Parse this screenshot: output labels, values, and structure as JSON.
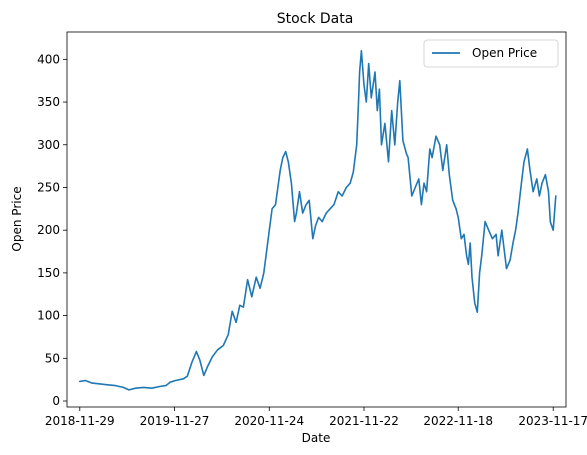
{
  "chart_data": {
    "type": "line",
    "title": "Stock Data",
    "xlabel": "Date",
    "ylabel": "Open Price",
    "legend_position": "top-right",
    "grid": false,
    "color": "#1f77b4",
    "ylim": [
      -7,
      432
    ],
    "xlim": [
      "2018-10-11",
      "2024-01-05"
    ],
    "x_ticks": [
      "2018-11-29",
      "2019-11-27",
      "2020-11-24",
      "2021-11-22",
      "2022-11-18",
      "2023-11-17"
    ],
    "y_ticks": [
      0,
      50,
      100,
      150,
      200,
      250,
      300,
      350,
      400
    ],
    "series": [
      {
        "name": "Open Price",
        "x": [
          "2018-11-29",
          "2018-12-20",
          "2019-01-15",
          "2019-02-15",
          "2019-03-15",
          "2019-04-15",
          "2019-05-15",
          "2019-06-05",
          "2019-07-01",
          "2019-08-01",
          "2019-09-01",
          "2019-10-01",
          "2019-10-25",
          "2019-11-10",
          "2019-12-01",
          "2019-12-31",
          "2020-01-15",
          "2020-02-01",
          "2020-02-19",
          "2020-03-03",
          "2020-03-18",
          "2020-04-01",
          "2020-04-20",
          "2020-05-10",
          "2020-06-01",
          "2020-06-20",
          "2020-07-05",
          "2020-07-20",
          "2020-08-03",
          "2020-08-17",
          "2020-09-02",
          "2020-09-18",
          "2020-10-05",
          "2020-10-20",
          "2020-11-03",
          "2020-11-24",
          "2020-12-05",
          "2020-12-18",
          "2021-01-05",
          "2021-01-15",
          "2021-01-26",
          "2021-02-05",
          "2021-02-17",
          "2021-03-01",
          "2021-03-08",
          "2021-03-20",
          "2021-04-01",
          "2021-04-14",
          "2021-04-26",
          "2021-05-10",
          "2021-05-20",
          "2021-06-01",
          "2021-06-15",
          "2021-06-30",
          "2021-07-15",
          "2021-07-30",
          "2021-08-15",
          "2021-08-30",
          "2021-09-15",
          "2021-09-30",
          "2021-10-12",
          "2021-10-25",
          "2021-11-01",
          "2021-11-05",
          "2021-11-12",
          "2021-11-22",
          "2021-12-01",
          "2021-12-10",
          "2021-12-20",
          "2022-01-03",
          "2022-01-12",
          "2022-01-20",
          "2022-01-28",
          "2022-02-10",
          "2022-02-24",
          "2022-03-08",
          "2022-03-20",
          "2022-03-31",
          "2022-04-08",
          "2022-04-20",
          "2022-05-03",
          "2022-05-10",
          "2022-05-24",
          "2022-06-06",
          "2022-06-20",
          "2022-06-30",
          "2022-07-10",
          "2022-07-20",
          "2022-08-01",
          "2022-08-10",
          "2022-08-25",
          "2022-09-08",
          "2022-09-20",
          "2022-10-05",
          "2022-10-15",
          "2022-10-28",
          "2022-11-10",
          "2022-11-18",
          "2022-11-30",
          "2022-12-10",
          "2022-12-20",
          "2022-12-27",
          "2023-01-03",
          "2023-01-10",
          "2023-01-20",
          "2023-01-30",
          "2023-02-08",
          "2023-02-16",
          "2023-03-01",
          "2023-03-15",
          "2023-03-29",
          "2023-04-12",
          "2023-04-20",
          "2023-05-04",
          "2023-05-22",
          "2023-06-05",
          "2023-06-16",
          "2023-06-26",
          "2023-07-05",
          "2023-07-18",
          "2023-07-28",
          "2023-08-10",
          "2023-08-20",
          "2023-09-01",
          "2023-09-15",
          "2023-09-25",
          "2023-10-05",
          "2023-10-18",
          "2023-10-30",
          "2023-11-06",
          "2023-11-17",
          "2023-11-27"
        ],
        "values": [
          23,
          24,
          21,
          20,
          19,
          18,
          16,
          13,
          15,
          16,
          15,
          17,
          18,
          22,
          24,
          26,
          29,
          45,
          58,
          48,
          30,
          40,
          52,
          60,
          65,
          78,
          105,
          92,
          112,
          110,
          142,
          122,
          145,
          132,
          150,
          200,
          225,
          230,
          270,
          285,
          292,
          280,
          255,
          210,
          220,
          245,
          220,
          230,
          235,
          190,
          205,
          215,
          210,
          220,
          225,
          230,
          245,
          240,
          250,
          255,
          268,
          300,
          350,
          385,
          410,
          370,
          350,
          395,
          355,
          385,
          340,
          365,
          300,
          325,
          280,
          340,
          300,
          350,
          375,
          305,
          290,
          285,
          240,
          250,
          260,
          230,
          255,
          245,
          295,
          285,
          310,
          300,
          270,
          300,
          265,
          235,
          225,
          215,
          190,
          195,
          170,
          160,
          185,
          145,
          115,
          104,
          150,
          170,
          210,
          200,
          190,
          195,
          170,
          200,
          155,
          165,
          185,
          200,
          220,
          255,
          280,
          295,
          270,
          245,
          260,
          240,
          255,
          265,
          245,
          210,
          200,
          240
        ]
      }
    ]
  }
}
